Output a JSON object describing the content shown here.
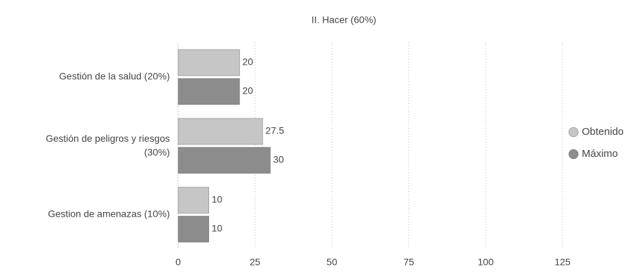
{
  "chart_data": {
    "type": "hbar",
    "title": "II. Hacer (60%)",
    "categories": [
      "Gestión de la salud (20%)",
      "Gestión de peligros y riesgos (30%)",
      "Gestion de amenazas (10%)"
    ],
    "series": [
      {
        "name": "Obtenido",
        "color": "#c6c6c6",
        "values": [
          20,
          27.5,
          10
        ]
      },
      {
        "name": "Máximo",
        "color": "#8c8c8c",
        "values": [
          20,
          30,
          10
        ]
      }
    ],
    "xlim": [
      0,
      125
    ],
    "xticks": [
      0,
      25,
      50,
      75,
      100,
      125
    ],
    "grid": true,
    "legend": "right"
  }
}
